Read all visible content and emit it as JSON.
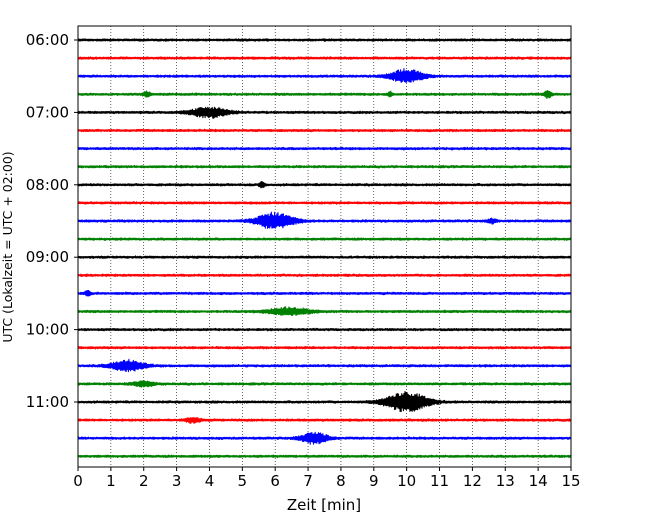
{
  "chart_data": {
    "type": "line",
    "title": "",
    "xlabel": "Zeit  [min]",
    "ylabel": "UTC (Lokalzeit = UTC + 02:00)",
    "xlim": [
      0,
      15
    ],
    "x_ticks": [
      "0",
      "1",
      "2",
      "3",
      "4",
      "5",
      "6",
      "7",
      "8",
      "9",
      "10",
      "11",
      "12",
      "13",
      "14",
      "15"
    ],
    "y_ticks": [
      "06:00",
      "07:00",
      "08:00",
      "09:00",
      "10:00",
      "11:00"
    ],
    "grid": "vertical dotted",
    "line_colors": [
      "#000000",
      "#ff0000",
      "#0000ff",
      "#008000"
    ],
    "traces": [
      {
        "start": "06:00",
        "events": []
      },
      {
        "start": "06:15",
        "events": []
      },
      {
        "start": "06:30",
        "events": [
          {
            "t": 10.0,
            "amp": 0.55,
            "dur": 0.6
          }
        ]
      },
      {
        "start": "06:45",
        "events": [
          {
            "t": 2.1,
            "amp": 0.2,
            "dur": 0.15
          },
          {
            "t": 9.5,
            "amp": 0.2,
            "dur": 0.1
          },
          {
            "t": 14.3,
            "amp": 0.3,
            "dur": 0.15
          }
        ]
      },
      {
        "start": "07:00",
        "events": [
          {
            "t": 4.0,
            "amp": 0.4,
            "dur": 0.7
          }
        ]
      },
      {
        "start": "07:15",
        "events": []
      },
      {
        "start": "07:30",
        "events": []
      },
      {
        "start": "07:45",
        "events": []
      },
      {
        "start": "08:00",
        "events": [
          {
            "t": 5.6,
            "amp": 0.25,
            "dur": 0.1
          }
        ]
      },
      {
        "start": "08:15",
        "events": []
      },
      {
        "start": "08:30",
        "events": [
          {
            "t": 6.0,
            "amp": 0.65,
            "dur": 0.7
          },
          {
            "t": 12.6,
            "amp": 0.2,
            "dur": 0.15
          }
        ]
      },
      {
        "start": "08:45",
        "events": []
      },
      {
        "start": "09:00",
        "events": []
      },
      {
        "start": "09:15",
        "events": []
      },
      {
        "start": "09:30",
        "events": [
          {
            "t": 0.3,
            "amp": 0.2,
            "dur": 0.1
          }
        ]
      },
      {
        "start": "09:45",
        "events": [
          {
            "t": 6.4,
            "amp": 0.3,
            "dur": 0.8
          }
        ]
      },
      {
        "start": "10:00",
        "events": []
      },
      {
        "start": "10:15",
        "events": []
      },
      {
        "start": "10:30",
        "events": [
          {
            "t": 1.5,
            "amp": 0.45,
            "dur": 0.6
          }
        ]
      },
      {
        "start": "10:45",
        "events": [
          {
            "t": 2.0,
            "amp": 0.2,
            "dur": 0.4
          }
        ]
      },
      {
        "start": "11:00",
        "events": [
          {
            "t": 10.0,
            "amp": 0.8,
            "dur": 0.8
          }
        ]
      },
      {
        "start": "11:15",
        "events": [
          {
            "t": 3.5,
            "amp": 0.2,
            "dur": 0.3
          }
        ]
      },
      {
        "start": "11:30",
        "events": [
          {
            "t": 7.2,
            "amp": 0.45,
            "dur": 0.5
          }
        ]
      },
      {
        "start": "11:45",
        "events": []
      }
    ]
  }
}
